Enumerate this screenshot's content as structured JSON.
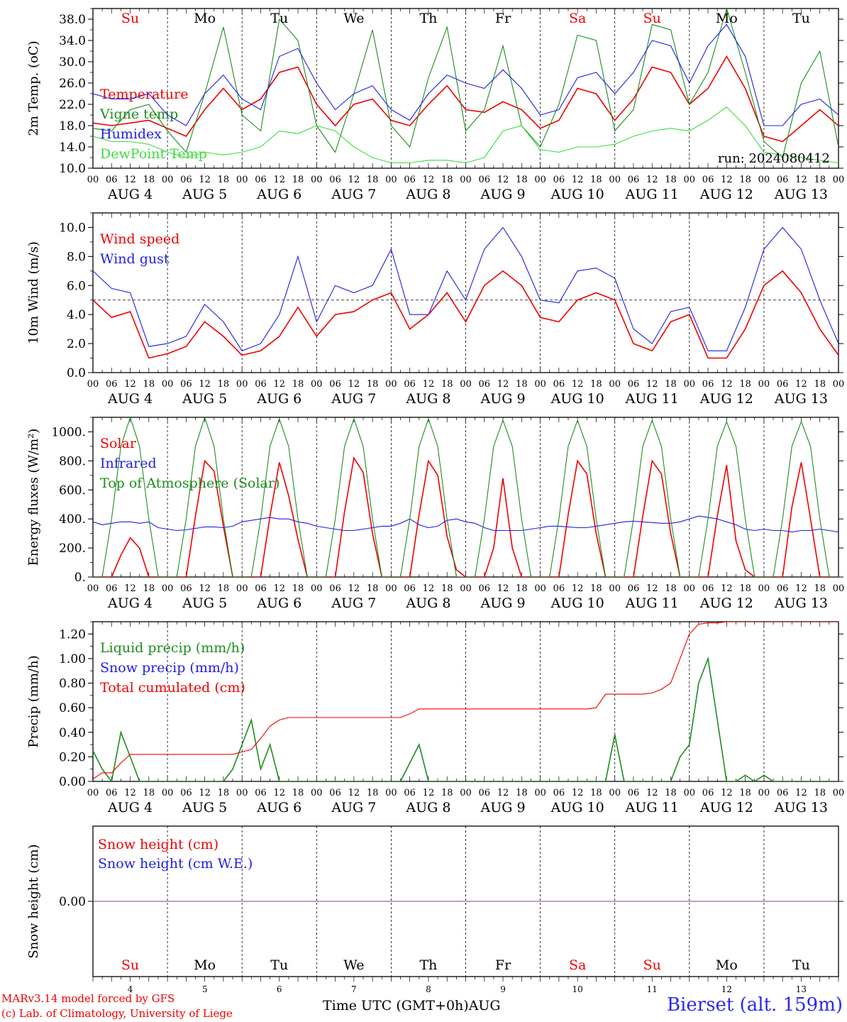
{
  "days": [
    {
      "weekday": "Su",
      "label": "AUG  4",
      "date": "4",
      "weekend": true
    },
    {
      "weekday": "Mo",
      "label": "AUG  5",
      "date": "5",
      "weekend": false
    },
    {
      "weekday": "Tu",
      "label": "AUG  6",
      "date": "6",
      "weekend": false
    },
    {
      "weekday": "We",
      "label": "AUG  7",
      "date": "7",
      "weekend": false
    },
    {
      "weekday": "Th",
      "label": "AUG  8",
      "date": "8",
      "weekend": false
    },
    {
      "weekday": "Fr",
      "label": "AUG  9",
      "date": "9",
      "weekend": false
    },
    {
      "weekday": "Sa",
      "label": "AUG 10",
      "date": "10",
      "weekend": true
    },
    {
      "weekday": "Su",
      "label": "AUG 11",
      "date": "11",
      "weekend": true
    },
    {
      "weekday": "Mo",
      "label": "AUG 12",
      "date": "12",
      "weekend": false
    },
    {
      "weekday": "Tu",
      "label": "AUG 13",
      "date": "13",
      "weekend": false
    }
  ],
  "hour_ticks": [
    "00",
    "06",
    "12",
    "18"
  ],
  "footer": {
    "model_line": "MARv3.14 model forced by GFS",
    "copyright_line": "(c) Lab. of Climatology, University of Liege",
    "time_axis": "Time UTC (GMT+0h)AUG",
    "station": "Bierset (alt. 159m)"
  },
  "colors": {
    "red": "#ee0000",
    "green": "#1e8c1e",
    "blue": "#1e1ee6",
    "lightgreen": "#3cdc3c",
    "purple": "#7a3a9a"
  },
  "chart_data": [
    {
      "type": "line",
      "ylabel": "2m Temp. (oC)",
      "ylim": [
        10,
        40
      ],
      "yticks": [
        "10.0",
        "14.0",
        "18.0",
        "22.0",
        "26.0",
        "30.0",
        "34.0",
        "38.0"
      ],
      "ytick_values": [
        10,
        14,
        18,
        22,
        26,
        30,
        34,
        38
      ],
      "annotation": "run: 2024080412",
      "x_hours": [
        0,
        6,
        12,
        18,
        24,
        30,
        36,
        42,
        48,
        54,
        60,
        66,
        72,
        78,
        84,
        90,
        96,
        102,
        108,
        114,
        120,
        126,
        132,
        138,
        144,
        150,
        156,
        162,
        168,
        174,
        180,
        186,
        192,
        198,
        204,
        210,
        216,
        222,
        228,
        234,
        240
      ],
      "series": [
        {
          "name": "Temperature",
          "color": "red",
          "values": [
            18.5,
            18,
            18.5,
            19,
            17.5,
            16,
            21,
            25,
            21,
            23,
            28,
            29,
            22,
            18,
            22,
            23,
            19,
            18,
            22,
            25.5,
            21,
            20.5,
            22.5,
            21,
            17.5,
            19,
            25,
            24,
            19,
            23,
            29,
            28,
            22,
            25,
            31,
            25,
            16,
            15,
            18,
            21,
            18
          ]
        },
        {
          "name": "Vigne temp",
          "color": "green",
          "values": [
            17.5,
            17,
            21,
            22,
            17,
            13,
            24,
            36.5,
            20,
            17,
            38,
            34,
            18,
            13,
            24,
            36,
            18,
            14,
            27,
            36.5,
            17,
            21,
            33,
            18,
            14,
            22,
            35,
            34,
            17,
            21,
            37,
            36,
            22,
            28,
            40,
            28,
            15,
            12,
            26,
            32,
            14
          ]
        },
        {
          "name": "Humidex",
          "color": "blue",
          "values": [
            24,
            23,
            23,
            24,
            20,
            18,
            24,
            27.5,
            23,
            21,
            31,
            32.5,
            26,
            21,
            24,
            25.5,
            21,
            19,
            24,
            27.5,
            26,
            25,
            28.5,
            25,
            20,
            21,
            27,
            28,
            24,
            28,
            34,
            33,
            26,
            33,
            37,
            31,
            18,
            18,
            22,
            23,
            20
          ]
        },
        {
          "name": "DewPoint Temp",
          "color": "lightgreen",
          "values": [
            16,
            15,
            15,
            14.5,
            13,
            12,
            13,
            12.5,
            13,
            14,
            17,
            16.5,
            18,
            17,
            14,
            12,
            11,
            11,
            11.5,
            11.5,
            11,
            12,
            17,
            18,
            13.5,
            13,
            14,
            14,
            14.5,
            16,
            17,
            17.5,
            17,
            19,
            21.5,
            18,
            13,
            12.5,
            12,
            11.5,
            11
          ]
        }
      ]
    },
    {
      "type": "line",
      "ylabel": "10m Wind (m/s)",
      "ylim": [
        0,
        11
      ],
      "yticks": [
        "0.0",
        "2.0",
        "4.0",
        "6.0",
        "8.0",
        "10.0"
      ],
      "ytick_values": [
        0,
        2,
        4,
        6,
        8,
        10
      ],
      "reference_line": 5,
      "x_hours": [
        0,
        6,
        12,
        18,
        24,
        30,
        36,
        42,
        48,
        54,
        60,
        66,
        72,
        78,
        84,
        90,
        96,
        102,
        108,
        114,
        120,
        126,
        132,
        138,
        144,
        150,
        156,
        162,
        168,
        174,
        180,
        186,
        192,
        198,
        204,
        210,
        216,
        222,
        228,
        234,
        240
      ],
      "series": [
        {
          "name": "Wind speed",
          "color": "red",
          "values": [
            5,
            3.8,
            4.2,
            1,
            1.3,
            1.8,
            3.5,
            2.5,
            1.2,
            1.5,
            2.5,
            4.5,
            2.5,
            4,
            4.2,
            5,
            5.5,
            3,
            4,
            5.5,
            3.5,
            6,
            7,
            6,
            3.8,
            3.5,
            5,
            5.5,
            5,
            2,
            1.5,
            3.5,
            4,
            1,
            1,
            3,
            6,
            7,
            5.5,
            3,
            1.2
          ]
        },
        {
          "name": "Wind gust",
          "color": "blue",
          "values": [
            7,
            5.8,
            5.5,
            1.8,
            2,
            2.5,
            4.7,
            3.5,
            1.5,
            2,
            4,
            8,
            3.5,
            6,
            5.5,
            6,
            8.5,
            4,
            4,
            7,
            5,
            8.5,
            10,
            8,
            5,
            4.8,
            7,
            7.2,
            6.5,
            3,
            2,
            4.2,
            4.5,
            1.5,
            1.5,
            4.5,
            8.5,
            10,
            8.5,
            5,
            2
          ]
        }
      ]
    },
    {
      "type": "line",
      "ylabel": "Energy fluxes (W/m²)",
      "ylim": [
        0,
        1100
      ],
      "yticks": [
        "0.",
        "200.",
        "400.",
        "600.",
        "800.",
        "1000."
      ],
      "ytick_values": [
        0,
        200,
        400,
        600,
        800,
        1000
      ],
      "x_hours": [
        0,
        3,
        6,
        9,
        12,
        15,
        18,
        21,
        24,
        27,
        30,
        33,
        36,
        39,
        42,
        45,
        48,
        51,
        54,
        57,
        60,
        63,
        66,
        69,
        72,
        75,
        78,
        81,
        84,
        87,
        90,
        93,
        96,
        99,
        102,
        105,
        108,
        111,
        114,
        117,
        120,
        123,
        126,
        129,
        132,
        135,
        138,
        141,
        144,
        147,
        150,
        153,
        156,
        159,
        162,
        165,
        168,
        171,
        174,
        177,
        180,
        183,
        186,
        189,
        192,
        195,
        198,
        201,
        204,
        207,
        210,
        213,
        216,
        219,
        222,
        225,
        228,
        231,
        234,
        237,
        240
      ],
      "series": [
        {
          "name": "Solar",
          "color": "red",
          "values": [
            0,
            0,
            0,
            150,
            270,
            200,
            0,
            0,
            0,
            0,
            0,
            420,
            800,
            730,
            350,
            0,
            0,
            0,
            0,
            420,
            790,
            560,
            260,
            0,
            0,
            0,
            0,
            450,
            820,
            720,
            300,
            0,
            0,
            0,
            0,
            430,
            800,
            700,
            280,
            50,
            0,
            0,
            0,
            200,
            680,
            200,
            0,
            0,
            0,
            0,
            0,
            430,
            800,
            710,
            300,
            0,
            0,
            0,
            0,
            420,
            800,
            710,
            300,
            0,
            0,
            0,
            0,
            420,
            770,
            250,
            50,
            0,
            0,
            0,
            0,
            480,
            790,
            400,
            0,
            0,
            0
          ]
        },
        {
          "name": "Infrared",
          "color": "blue",
          "values": [
            380,
            360,
            370,
            380,
            380,
            370,
            380,
            340,
            330,
            320,
            325,
            335,
            345,
            345,
            340,
            350,
            380,
            390,
            400,
            410,
            400,
            400,
            380,
            370,
            350,
            340,
            330,
            320,
            320,
            330,
            340,
            350,
            350,
            370,
            400,
            360,
            340,
            350,
            390,
            400,
            380,
            370,
            340,
            320,
            320,
            320,
            320,
            330,
            340,
            350,
            350,
            345,
            340,
            340,
            350,
            360,
            370,
            380,
            385,
            380,
            375,
            370,
            370,
            380,
            400,
            420,
            410,
            400,
            380,
            360,
            330,
            320,
            330,
            320,
            320,
            310,
            320,
            320,
            330,
            320,
            310
          ]
        },
        {
          "name": "Top of Atmosphere (Solar)",
          "color": "green",
          "values": [
            0,
            0,
            400,
            900,
            1100,
            900,
            400,
            0,
            0,
            0,
            400,
            900,
            1100,
            900,
            400,
            0,
            0,
            0,
            400,
            900,
            1090,
            900,
            400,
            0,
            0,
            0,
            400,
            900,
            1090,
            900,
            400,
            0,
            0,
            0,
            400,
            900,
            1090,
            900,
            400,
            0,
            0,
            0,
            400,
            900,
            1080,
            900,
            400,
            0,
            0,
            0,
            400,
            900,
            1080,
            900,
            400,
            0,
            0,
            0,
            400,
            900,
            1080,
            900,
            400,
            0,
            0,
            0,
            400,
            900,
            1070,
            900,
            400,
            0,
            0,
            0,
            400,
            900,
            1070,
            900,
            400,
            0,
            0
          ]
        }
      ]
    },
    {
      "type": "line",
      "ylabel": "Precip (mm/h)",
      "ylim": [
        0,
        1.3
      ],
      "yticks": [
        "0.00",
        "0.20",
        "0.40",
        "0.60",
        "0.80",
        "1.00",
        "1.20"
      ],
      "ytick_values": [
        0,
        0.2,
        0.4,
        0.6,
        0.8,
        1.0,
        1.2
      ],
      "x_hours": [
        0,
        3,
        6,
        9,
        12,
        15,
        18,
        21,
        24,
        27,
        30,
        33,
        36,
        39,
        42,
        45,
        48,
        51,
        54,
        57,
        60,
        63,
        66,
        69,
        72,
        75,
        78,
        81,
        84,
        87,
        90,
        93,
        96,
        99,
        102,
        105,
        108,
        111,
        114,
        117,
        120,
        123,
        126,
        129,
        132,
        135,
        138,
        141,
        144,
        147,
        150,
        153,
        156,
        159,
        162,
        165,
        168,
        171,
        174,
        177,
        180,
        183,
        186,
        189,
        192,
        195,
        198,
        201,
        204,
        207,
        210,
        213,
        216,
        219,
        222,
        225,
        228,
        231,
        234,
        237,
        240
      ],
      "series": [
        {
          "name": "Liquid precip (mm/h)",
          "color": "green",
          "values": [
            0.25,
            0.1,
            0,
            0.4,
            0.2,
            0,
            0,
            0,
            0,
            0,
            0,
            0,
            0,
            0,
            0,
            0.1,
            0.3,
            0.5,
            0.1,
            0.3,
            0,
            0,
            0,
            0,
            0,
            0,
            0,
            0,
            0,
            0,
            0,
            0,
            0,
            0,
            0.15,
            0.3,
            0,
            0,
            0,
            0,
            0,
            0,
            0,
            0,
            0,
            0,
            0,
            0,
            0,
            0,
            0,
            0,
            0,
            0,
            0,
            0,
            0.38,
            0,
            0,
            0,
            0,
            0,
            0,
            0.2,
            0.3,
            0.8,
            1.0,
            0.5,
            0,
            0,
            0.05,
            0,
            0.05,
            0,
            0,
            0,
            0,
            0,
            0,
            0,
            0
          ]
        },
        {
          "name": "Snow precip (mm/h)",
          "color": "blue",
          "values": []
        },
        {
          "name": "Total cumulated (cm)",
          "color": "red",
          "values": [
            0.02,
            0.07,
            0.07,
            0.15,
            0.22,
            0.22,
            0.22,
            0.22,
            0.22,
            0.22,
            0.22,
            0.22,
            0.22,
            0.22,
            0.22,
            0.22,
            0.24,
            0.26,
            0.35,
            0.45,
            0.5,
            0.52,
            0.52,
            0.52,
            0.52,
            0.52,
            0.52,
            0.52,
            0.52,
            0.52,
            0.52,
            0.52,
            0.52,
            0.52,
            0.55,
            0.59,
            0.59,
            0.59,
            0.59,
            0.59,
            0.59,
            0.59,
            0.59,
            0.59,
            0.59,
            0.59,
            0.59,
            0.59,
            0.59,
            0.59,
            0.59,
            0.59,
            0.59,
            0.59,
            0.6,
            0.71,
            0.71,
            0.71,
            0.71,
            0.71,
            0.72,
            0.75,
            0.8,
            1.0,
            1.2,
            1.28,
            1.29,
            1.29,
            1.3,
            1.3,
            1.3,
            1.3,
            1.3,
            1.3,
            1.3,
            1.3,
            1.3,
            1.3,
            1.3,
            1.3,
            1.3
          ]
        }
      ]
    },
    {
      "type": "line",
      "ylabel": "Snow height (cm)",
      "ylim": [
        -1,
        1
      ],
      "yticks": [
        "0.00"
      ],
      "ytick_values": [
        0
      ],
      "x_hours": [
        0,
        240
      ],
      "series": [
        {
          "name": "Snow height (cm)",
          "color": "red",
          "values": [
            0,
            0
          ]
        },
        {
          "name": "Snow height (cm W.E.)",
          "color": "blue",
          "values": [
            0,
            0
          ]
        }
      ]
    }
  ]
}
